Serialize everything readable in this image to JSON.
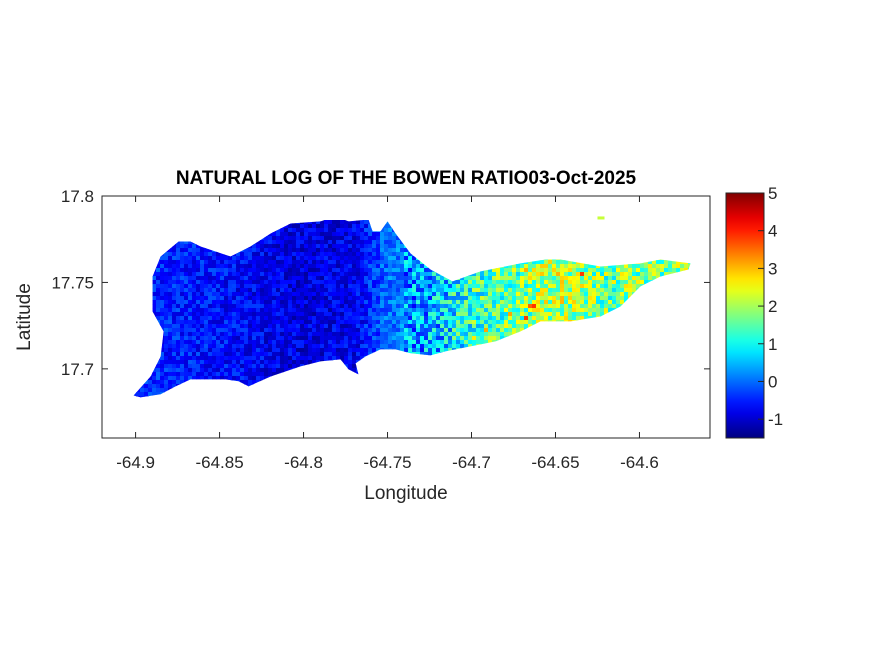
{
  "chart_data": {
    "type": "heatmap",
    "title": "NATURAL LOG OF THE BOWEN RATIO03-Oct-2025",
    "xlabel": "Longitude",
    "ylabel": "Latitude",
    "xlim": [
      -64.92,
      -64.558
    ],
    "ylim": [
      17.66,
      17.8
    ],
    "xticks": [
      -64.9,
      -64.85,
      -64.8,
      -64.75,
      -64.7,
      -64.65,
      -64.6
    ],
    "xtick_labels": [
      "-64.9",
      "-64.85",
      "-64.8",
      "-64.75",
      "-64.7",
      "-64.65",
      "-64.6"
    ],
    "yticks": [
      17.7,
      17.75,
      17.8
    ],
    "ytick_labels": [
      "17.7",
      "17.75",
      "17.8"
    ],
    "grid": false,
    "colormap": "jet",
    "colorbar": {
      "clim": [
        -1.5,
        5
      ],
      "ticks": [
        -1,
        0,
        1,
        2,
        3,
        4,
        5
      ],
      "tick_labels": [
        "-1",
        "0",
        "1",
        "2",
        "3",
        "4",
        "5"
      ],
      "placement": "right"
    },
    "value_profile_by_longitude": [
      {
        "lon": -64.9,
        "value": -0.4
      },
      {
        "lon": -64.85,
        "value": -0.6
      },
      {
        "lon": -64.8,
        "value": -0.9
      },
      {
        "lon": -64.77,
        "value": -0.8
      },
      {
        "lon": -64.75,
        "value": 0.0
      },
      {
        "lon": -64.72,
        "value": 0.5
      },
      {
        "lon": -64.7,
        "value": 1.3
      },
      {
        "lon": -64.67,
        "value": 1.7
      },
      {
        "lon": -64.65,
        "value": 2.1
      },
      {
        "lon": -64.62,
        "value": 1.7
      },
      {
        "lon": -64.58,
        "value": 1.8
      }
    ],
    "island_outline": [
      [
        -64.9012,
        17.6846
      ],
      [
        -64.8911,
        17.6956
      ],
      [
        -64.8851,
        17.7071
      ],
      [
        -64.8833,
        17.7216
      ],
      [
        -64.8899,
        17.7332
      ],
      [
        -64.8899,
        17.7534
      ],
      [
        -64.8851,
        17.765
      ],
      [
        -64.8744,
        17.7737
      ],
      [
        -64.8673,
        17.7737
      ],
      [
        -64.8613,
        17.7708
      ],
      [
        -64.8435,
        17.765
      ],
      [
        -64.8316,
        17.7708
      ],
      [
        -64.8196,
        17.7783
      ],
      [
        -64.8077,
        17.7841
      ],
      [
        -64.7899,
        17.7853
      ],
      [
        -64.7809,
        17.7882
      ],
      [
        -64.7732,
        17.7853
      ],
      [
        -64.7613,
        17.7864
      ],
      [
        -64.7589,
        17.7795
      ],
      [
        -64.7542,
        17.7795
      ],
      [
        -64.75,
        17.7853
      ],
      [
        -64.7452,
        17.7783
      ],
      [
        -64.7363,
        17.7668
      ],
      [
        -64.7244,
        17.7575
      ],
      [
        -64.7113,
        17.7506
      ],
      [
        -64.6946,
        17.7564
      ],
      [
        -64.6708,
        17.761
      ],
      [
        -64.6559,
        17.7633
      ],
      [
        -64.647,
        17.7633
      ],
      [
        -64.6232,
        17.7592
      ],
      [
        -64.5994,
        17.761
      ],
      [
        -64.5875,
        17.7633
      ],
      [
        -64.5696,
        17.761
      ],
      [
        -64.5708,
        17.7575
      ],
      [
        -64.5875,
        17.7534
      ],
      [
        -64.5994,
        17.7477
      ],
      [
        -64.6113,
        17.7361
      ],
      [
        -64.6232,
        17.7303
      ],
      [
        -64.641,
        17.7275
      ],
      [
        -64.6589,
        17.7275
      ],
      [
        -64.6708,
        17.7217
      ],
      [
        -64.6857,
        17.7159
      ],
      [
        -64.7006,
        17.713
      ],
      [
        -64.7155,
        17.7101
      ],
      [
        -64.7244,
        17.7078
      ],
      [
        -64.7363,
        17.709
      ],
      [
        -64.7452,
        17.7113
      ],
      [
        -64.7542,
        17.7113
      ],
      [
        -64.7631,
        17.7072
      ],
      [
        -64.769,
        17.7032
      ],
      [
        -64.7673,
        17.6968
      ],
      [
        -64.7732,
        17.6997
      ],
      [
        -64.778,
        17.7055
      ],
      [
        -64.7899,
        17.7043
      ],
      [
        -64.8018,
        17.7014
      ],
      [
        -64.8196,
        17.6956
      ],
      [
        -64.8327,
        17.6899
      ],
      [
        -64.8387,
        17.6928
      ],
      [
        -64.8464,
        17.6939
      ],
      [
        -64.8673,
        17.6939
      ],
      [
        -64.8762,
        17.6899
      ],
      [
        -64.8851,
        17.6853
      ],
      [
        -64.897,
        17.6835
      ]
    ],
    "islet": {
      "lon": -64.6232,
      "lat": 17.7873,
      "value": 2.2
    }
  }
}
